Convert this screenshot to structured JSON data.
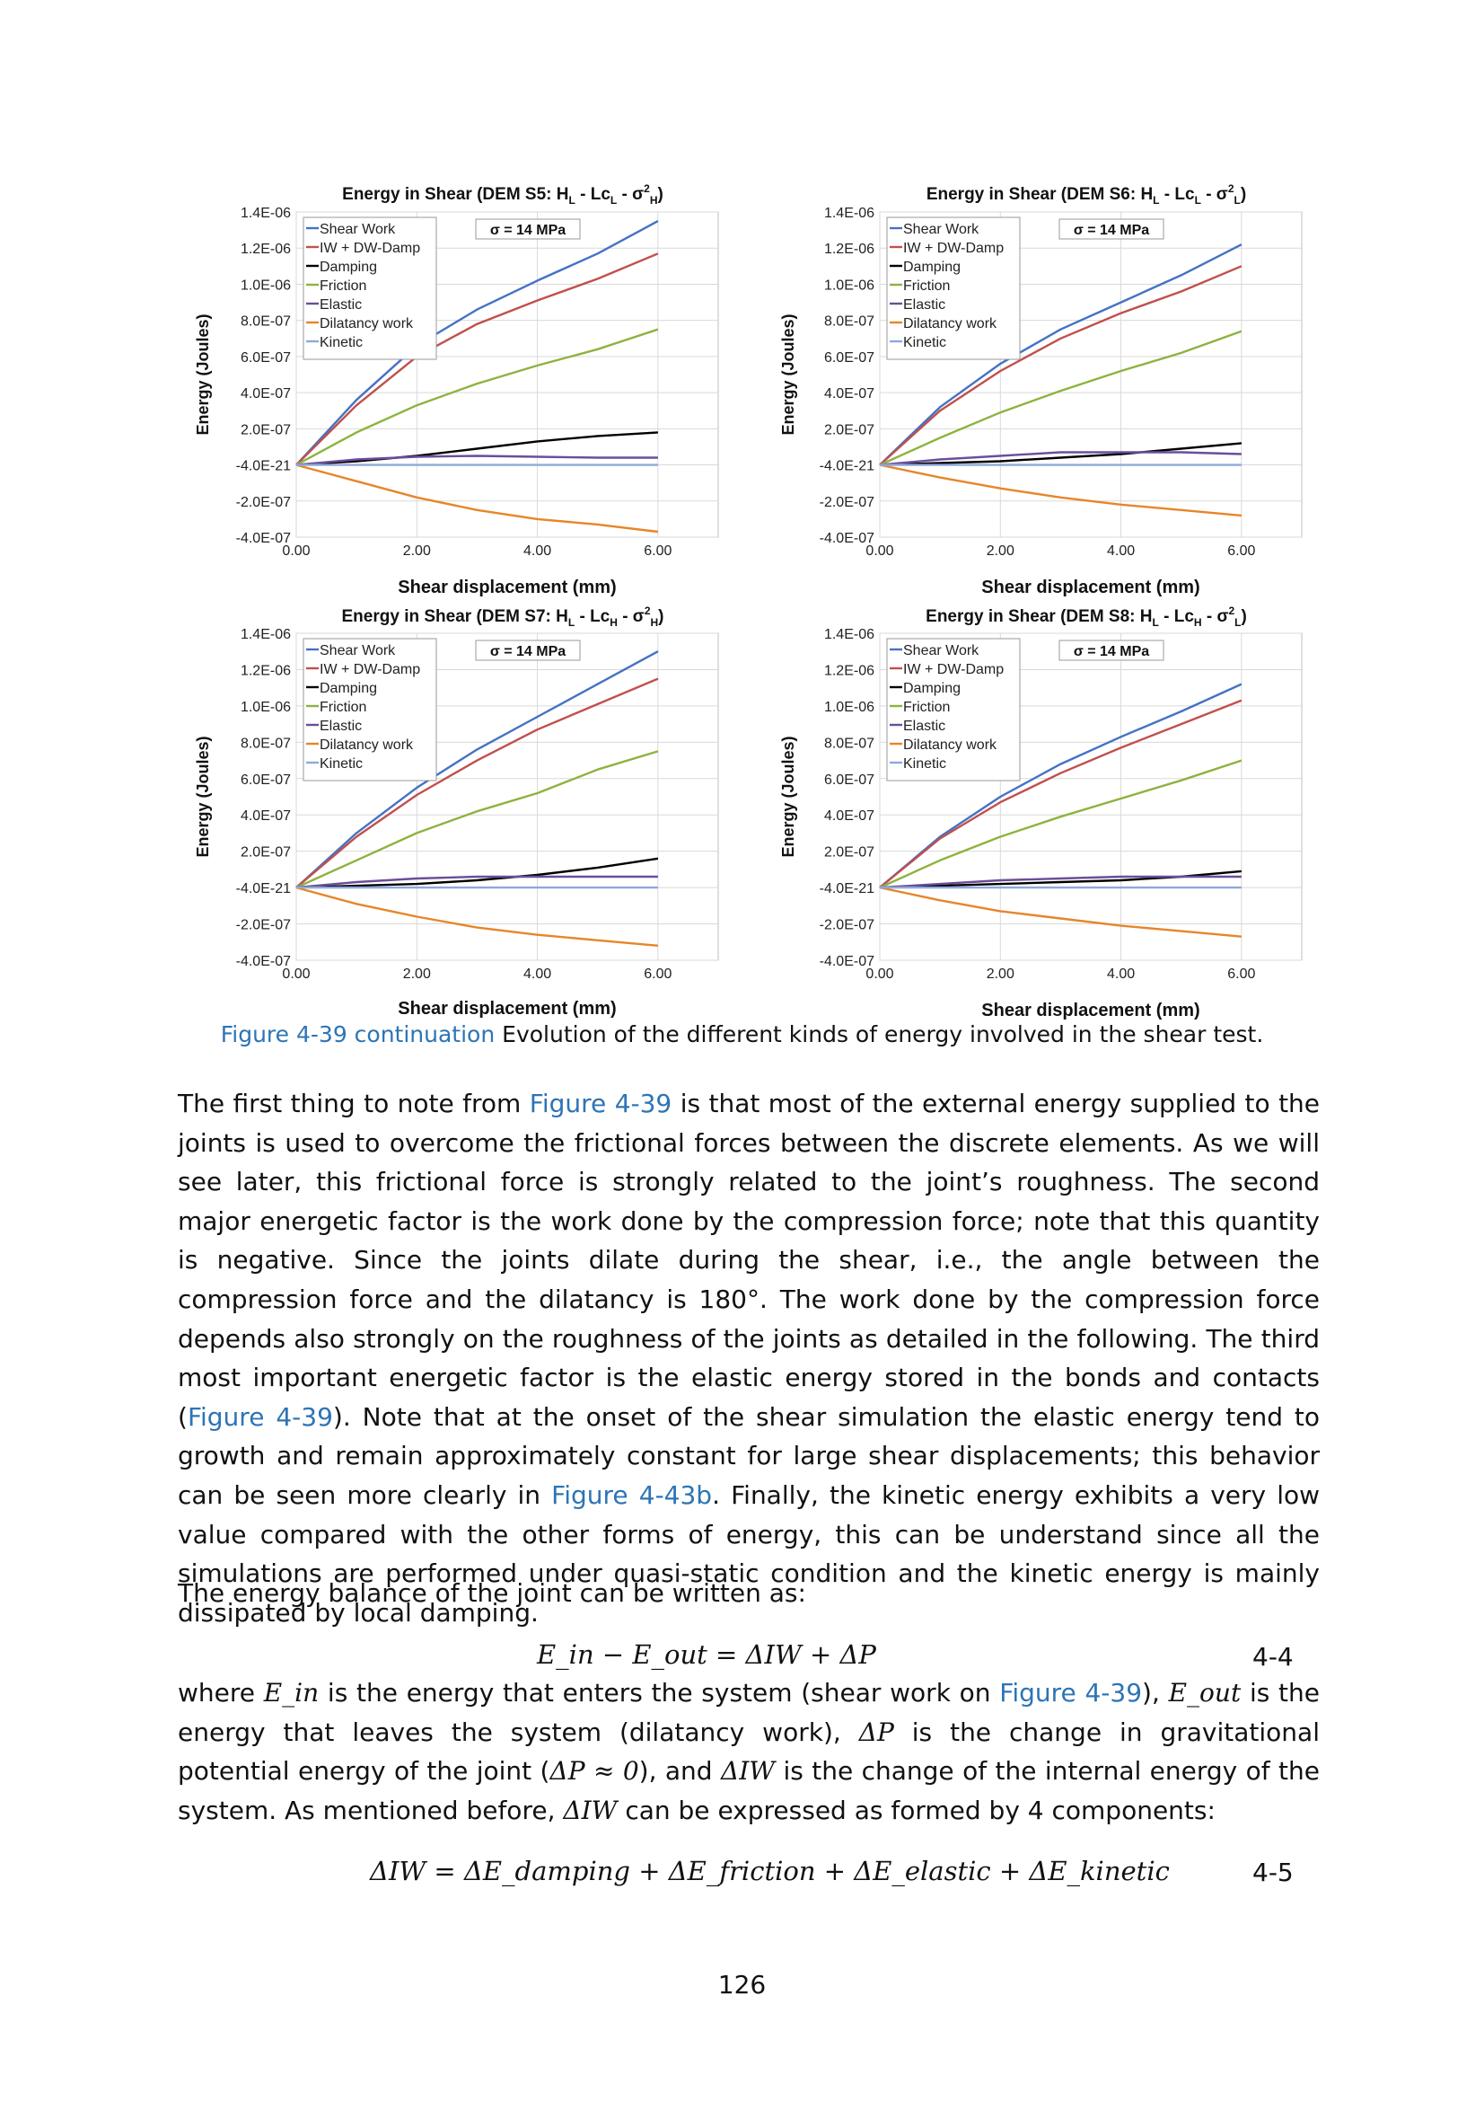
{
  "chart_data": [
    {
      "type": "line",
      "title": "Energy in Shear (DEM S5: H",
      "title_parts": [
        "L",
        " - Lc",
        "L",
        " - σ",
        "2",
        "H",
        ")"
      ],
      "sigma_label": "σ = 14 MPa",
      "xlabel": "Shear displacement (mm)",
      "ylabel": "Energy (Joules)",
      "x_ticks": [
        "0.00",
        "2.00",
        "4.00",
        "6.00"
      ],
      "y_ticks": [
        "1.4E-06",
        "1.2E-06",
        "1.0E-06",
        "8.0E-07",
        "6.0E-07",
        "4.0E-07",
        "2.0E-07",
        "-4.0E-21",
        "-2.0E-07",
        "-4.0E-07"
      ],
      "xlim": [
        0,
        7
      ],
      "ylim": [
        -4e-07,
        1.4e-06
      ],
      "legend_position": "top-left",
      "series": [
        {
          "name": "Shear Work",
          "color": "#4472c4",
          "x": [
            0,
            1,
            2,
            3,
            4,
            5,
            6
          ],
          "y": [
            0,
            3.6e-07,
            6.6e-07,
            8.6e-07,
            1.02e-06,
            1.17e-06,
            1.35e-06
          ]
        },
        {
          "name": "IW + DW-Damp",
          "color": "#c0504d",
          "x": [
            0,
            1,
            2,
            3,
            4,
            5,
            6
          ],
          "y": [
            0,
            3.3e-07,
            6e-07,
            7.8e-07,
            9.1e-07,
            1.03e-06,
            1.17e-06
          ]
        },
        {
          "name": "Damping",
          "color": "#000000",
          "x": [
            0,
            1,
            2,
            3,
            4,
            5,
            6
          ],
          "y": [
            0,
            2e-08,
            5e-08,
            9e-08,
            1.3e-07,
            1.6e-07,
            1.8e-07
          ]
        },
        {
          "name": "Friction",
          "color": "#8db33f",
          "x": [
            0,
            1,
            2,
            3,
            4,
            5,
            6
          ],
          "y": [
            0,
            1.8e-07,
            3.3e-07,
            4.5e-07,
            5.5e-07,
            6.4e-07,
            7.5e-07
          ]
        },
        {
          "name": "Elastic",
          "color": "#6a4e9a",
          "x": [
            0,
            1,
            2,
            3,
            4,
            5,
            6
          ],
          "y": [
            0,
            3e-08,
            4.5e-08,
            5e-08,
            4.5e-08,
            4e-08,
            4e-08
          ]
        },
        {
          "name": "Dilatancy work",
          "color": "#e6862a",
          "x": [
            0,
            1,
            2,
            3,
            4,
            5,
            6
          ],
          "y": [
            0,
            -9e-08,
            -1.8e-07,
            -2.5e-07,
            -3e-07,
            -3.3e-07,
            -3.7e-07
          ]
        },
        {
          "name": "Kinetic",
          "color": "#8ea9db",
          "x": [
            0,
            6
          ],
          "y": [
            0,
            0
          ]
        }
      ]
    },
    {
      "type": "line",
      "title": "Energy in Shear (DEM S6: H",
      "title_parts": [
        "L",
        " - Lc",
        "L",
        " - σ",
        "2",
        "L",
        ")"
      ],
      "sigma_label": "σ = 14 MPa",
      "xlabel": "Shear displacement (mm)",
      "ylabel": "Energy (Joules)",
      "x_ticks": [
        "0.00",
        "2.00",
        "4.00",
        "6.00"
      ],
      "y_ticks": [
        "1.4E-06",
        "1.2E-06",
        "1.0E-06",
        "8.0E-07",
        "6.0E-07",
        "4.0E-07",
        "2.0E-07",
        "-4.0E-21",
        "-2.0E-07",
        "-4.0E-07"
      ],
      "xlim": [
        0,
        7
      ],
      "ylim": [
        -4e-07,
        1.4e-06
      ],
      "legend_position": "top-left",
      "series": [
        {
          "name": "Shear Work",
          "color": "#4472c4",
          "x": [
            0,
            1,
            2,
            3,
            4,
            5,
            6
          ],
          "y": [
            0,
            3.2e-07,
            5.6e-07,
            7.5e-07,
            9e-07,
            1.05e-06,
            1.22e-06
          ]
        },
        {
          "name": "IW + DW-Damp",
          "color": "#c0504d",
          "x": [
            0,
            1,
            2,
            3,
            4,
            5,
            6
          ],
          "y": [
            0,
            3e-07,
            5.2e-07,
            7e-07,
            8.4e-07,
            9.6e-07,
            1.1e-06
          ]
        },
        {
          "name": "Damping",
          "color": "#000000",
          "x": [
            0,
            1,
            2,
            3,
            4,
            5,
            6
          ],
          "y": [
            0,
            1e-08,
            2e-08,
            4e-08,
            6e-08,
            9e-08,
            1.2e-07
          ]
        },
        {
          "name": "Friction",
          "color": "#8db33f",
          "x": [
            0,
            1,
            2,
            3,
            4,
            5,
            6
          ],
          "y": [
            0,
            1.5e-07,
            2.9e-07,
            4.1e-07,
            5.2e-07,
            6.2e-07,
            7.4e-07
          ]
        },
        {
          "name": "Elastic",
          "color": "#6a4e9a",
          "x": [
            0,
            1,
            2,
            3,
            4,
            5,
            6
          ],
          "y": [
            0,
            3e-08,
            5e-08,
            7e-08,
            7e-08,
            7e-08,
            6e-08
          ]
        },
        {
          "name": "Dilatancy work",
          "color": "#e6862a",
          "x": [
            0,
            1,
            2,
            3,
            4,
            5,
            6
          ],
          "y": [
            0,
            -7e-08,
            -1.3e-07,
            -1.8e-07,
            -2.2e-07,
            -2.5e-07,
            -2.8e-07
          ]
        },
        {
          "name": "Kinetic",
          "color": "#8ea9db",
          "x": [
            0,
            6
          ],
          "y": [
            0,
            0
          ]
        }
      ]
    },
    {
      "type": "line",
      "title": "Energy in Shear (DEM S7: H",
      "title_parts": [
        "L",
        " - Lc",
        "H",
        " - σ",
        "2",
        "H",
        ")"
      ],
      "sigma_label": "σ = 14 MPa",
      "xlabel": "Shear displacement (mm)",
      "ylabel": "Energy (Joules)",
      "x_ticks": [
        "0.00",
        "2.00",
        "4.00",
        "6.00"
      ],
      "y_ticks": [
        "1.4E-06",
        "1.2E-06",
        "1.0E-06",
        "8.0E-07",
        "6.0E-07",
        "4.0E-07",
        "2.0E-07",
        "-4.0E-21",
        "-2.0E-07",
        "-4.0E-07"
      ],
      "xlim": [
        0,
        7
      ],
      "ylim": [
        -4e-07,
        1.4e-06
      ],
      "legend_position": "top-left",
      "series": [
        {
          "name": "Shear Work",
          "color": "#4472c4",
          "x": [
            0,
            1,
            2,
            3,
            4,
            5,
            6
          ],
          "y": [
            0,
            3e-07,
            5.5e-07,
            7.6e-07,
            9.4e-07,
            1.12e-06,
            1.3e-06
          ]
        },
        {
          "name": "IW + DW-Damp",
          "color": "#c0504d",
          "x": [
            0,
            1,
            2,
            3,
            4,
            5,
            6
          ],
          "y": [
            0,
            2.8e-07,
            5.1e-07,
            7e-07,
            8.7e-07,
            1.01e-06,
            1.15e-06
          ]
        },
        {
          "name": "Damping",
          "color": "#000000",
          "x": [
            0,
            1,
            2,
            3,
            4,
            5,
            6
          ],
          "y": [
            0,
            1e-08,
            2e-08,
            4e-08,
            7e-08,
            1.1e-07,
            1.6e-07
          ]
        },
        {
          "name": "Friction",
          "color": "#8db33f",
          "x": [
            0,
            1,
            2,
            3,
            4,
            5,
            6
          ],
          "y": [
            0,
            1.5e-07,
            3e-07,
            4.2e-07,
            5.2e-07,
            6.5e-07,
            7.5e-07
          ]
        },
        {
          "name": "Elastic",
          "color": "#6a4e9a",
          "x": [
            0,
            1,
            2,
            3,
            4,
            5,
            6
          ],
          "y": [
            0,
            3e-08,
            5e-08,
            6e-08,
            6e-08,
            6e-08,
            6e-08
          ]
        },
        {
          "name": "Dilatancy work",
          "color": "#e6862a",
          "x": [
            0,
            1,
            2,
            3,
            4,
            5,
            6
          ],
          "y": [
            0,
            -9e-08,
            -1.6e-07,
            -2.2e-07,
            -2.6e-07,
            -2.9e-07,
            -3.2e-07
          ]
        },
        {
          "name": "Kinetic",
          "color": "#8ea9db",
          "x": [
            0,
            6
          ],
          "y": [
            0,
            0
          ]
        }
      ]
    },
    {
      "type": "line",
      "title": "Energy in Shear (DEM S8: H",
      "title_parts": [
        "L",
        " - Lc",
        "H",
        " - σ",
        "2",
        "L",
        ")"
      ],
      "sigma_label": "σ = 14 MPa",
      "xlabel": "Shear displacement (mm)",
      "ylabel": "Energy (Joules)",
      "x_ticks": [
        "0.00",
        "2.00",
        "4.00",
        "6.00"
      ],
      "y_ticks": [
        "1.4E-06",
        "1.2E-06",
        "1.0E-06",
        "8.0E-07",
        "6.0E-07",
        "4.0E-07",
        "2.0E-07",
        "-4.0E-21",
        "-2.0E-07",
        "-4.0E-07"
      ],
      "xlim": [
        0,
        7
      ],
      "ylim": [
        -4e-07,
        1.4e-06
      ],
      "legend_position": "top-left",
      "series": [
        {
          "name": "Shear Work",
          "color": "#4472c4",
          "x": [
            0,
            1,
            2,
            3,
            4,
            5,
            6
          ],
          "y": [
            0,
            2.8e-07,
            5e-07,
            6.8e-07,
            8.3e-07,
            9.7e-07,
            1.12e-06
          ]
        },
        {
          "name": "IW + DW-Damp",
          "color": "#c0504d",
          "x": [
            0,
            1,
            2,
            3,
            4,
            5,
            6
          ],
          "y": [
            0,
            2.7e-07,
            4.7e-07,
            6.3e-07,
            7.7e-07,
            9e-07,
            1.03e-06
          ]
        },
        {
          "name": "Damping",
          "color": "#000000",
          "x": [
            0,
            1,
            2,
            3,
            4,
            5,
            6
          ],
          "y": [
            0,
            1e-08,
            2e-08,
            3e-08,
            4e-08,
            6e-08,
            9e-08
          ]
        },
        {
          "name": "Friction",
          "color": "#8db33f",
          "x": [
            0,
            1,
            2,
            3,
            4,
            5,
            6
          ],
          "y": [
            0,
            1.5e-07,
            2.8e-07,
            3.9e-07,
            4.9e-07,
            5.9e-07,
            7e-07
          ]
        },
        {
          "name": "Elastic",
          "color": "#6a4e9a",
          "x": [
            0,
            1,
            2,
            3,
            4,
            5,
            6
          ],
          "y": [
            0,
            2e-08,
            4e-08,
            5e-08,
            6e-08,
            6e-08,
            6e-08
          ]
        },
        {
          "name": "Dilatancy work",
          "color": "#e6862a",
          "x": [
            0,
            1,
            2,
            3,
            4,
            5,
            6
          ],
          "y": [
            0,
            -7e-08,
            -1.3e-07,
            -1.7e-07,
            -2.1e-07,
            -2.4e-07,
            -2.7e-07
          ]
        },
        {
          "name": "Kinetic",
          "color": "#8ea9db",
          "x": [
            0,
            6
          ],
          "y": [
            0,
            0
          ]
        }
      ]
    }
  ],
  "caption": {
    "link": "Figure 4-39 continuation",
    "text": " Evolution of the different kinds of energy involved in the shear test."
  },
  "paragraph1": {
    "t1": "The first thing to note from ",
    "link1": "Figure 4-39",
    "t2": " is that most of the external energy supplied to the joints is used to overcome the frictional forces between the discrete elements. As we will see later, this frictional force is strongly related to the joint’s roughness. The second major energetic factor is the work done by the compression force; note that this quantity is negative. Since the joints dilate during the shear, i.e., the angle between the compression force and the dilatancy is 180°. The work done by the compression force depends also strongly on the roughness of the joints as detailed in the following. The third most important energetic factor is the elastic energy stored in the bonds and contacts (",
    "link2": "Figure 4-39",
    "t3": "). Note that at the onset of the shear simulation the elastic energy tend to growth and remain approximately constant for large shear displacements; this behavior can be seen more clearly in ",
    "link3": "Figure 4-43b",
    "t4": ". Finally, the kinetic energy exhibits a very low value compared with the other forms of energy, this can be understand since all the simulations are performed under quasi-static condition and the kinetic energy is mainly dissipated by local damping."
  },
  "paragraph2": "The energy balance of the joint can be written as:",
  "equation1": {
    "text": "E_in − E_out = ΔIW + ΔP",
    "number": "4-4"
  },
  "paragraph3": {
    "t1": "where ",
    "m1": "E_in",
    "t2": " is the energy that enters the system (shear work on ",
    "link1": "Figure 4-39",
    "t3": "), ",
    "m2": "E_out",
    "t4": " is the energy that leaves the system (dilatancy work), ",
    "m3": "ΔP",
    "t5": " is the change in gravitational potential energy of the joint (",
    "m4": "ΔP ≈ 0",
    "t6": "), and ",
    "m5": "ΔIW",
    "t7": " is the change of the internal energy of the system. As mentioned before, ",
    "m6": "ΔIW",
    "t8": " can be expressed as formed by 4 components:"
  },
  "equation2": {
    "text": "ΔIW = ΔE_damping + ΔE_friction + ΔE_elastic + ΔE_kinetic",
    "number": "4-5"
  },
  "page_number": "126"
}
